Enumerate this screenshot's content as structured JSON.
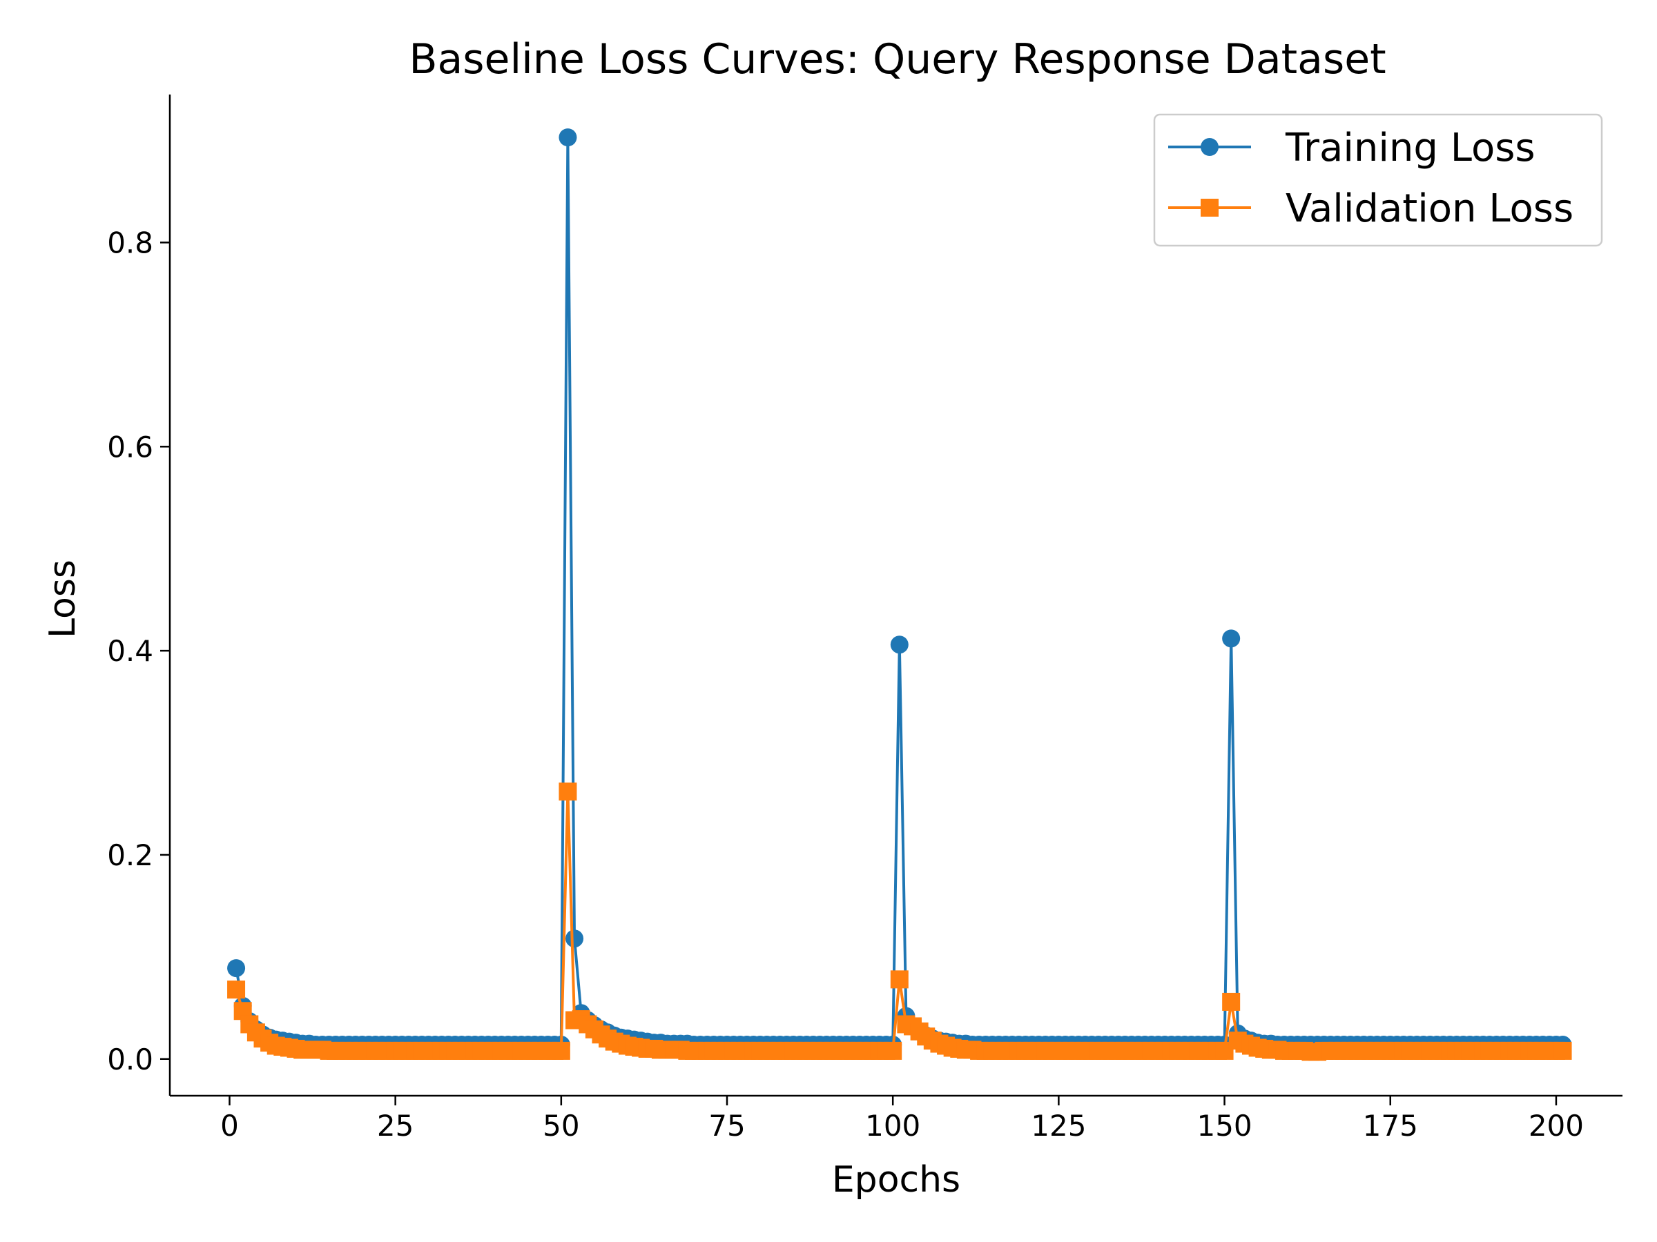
{
  "chart_data": {
    "type": "line",
    "title": "Baseline Loss Curves: Query Response Dataset",
    "xlabel": "Epochs",
    "ylabel": "Loss",
    "xlim": [
      -9,
      210
    ],
    "ylim": [
      -0.036,
      0.945
    ],
    "xticks": [
      0,
      25,
      50,
      75,
      100,
      125,
      150,
      175,
      200
    ],
    "yticks": [
      0.0,
      0.2,
      0.4,
      0.6,
      0.8
    ],
    "ytick_labels": [
      "0.0",
      "0.2",
      "0.4",
      "0.6",
      "0.8"
    ],
    "grid": false,
    "legend_position": "top-right",
    "x_start": 1,
    "x_end": 201,
    "series": [
      {
        "name": "Training Loss",
        "color": "#1f77b4",
        "marker": "circle",
        "segments": [
          {
            "x_start": 1,
            "values": [
              0.089,
              0.052,
              0.037,
              0.029,
              0.024,
              0.021,
              0.019,
              0.018,
              0.017,
              0.016,
              0.015,
              0.015,
              0.014,
              0.014,
              0.014,
              0.014,
              0.014,
              0.014,
              0.014,
              0.014,
              0.014,
              0.014,
              0.014,
              0.014,
              0.014,
              0.014,
              0.014,
              0.014,
              0.014,
              0.014,
              0.014,
              0.014,
              0.014,
              0.014,
              0.014,
              0.014,
              0.014,
              0.014,
              0.014,
              0.014,
              0.014,
              0.014,
              0.014,
              0.014,
              0.014,
              0.014,
              0.014,
              0.014,
              0.014,
              0.014
            ]
          },
          {
            "x_start": 51,
            "values": [
              0.903,
              0.118,
              0.045,
              0.038,
              0.033,
              0.029,
              0.026,
              0.023,
              0.021,
              0.02,
              0.019,
              0.018,
              0.017,
              0.016,
              0.016,
              0.015,
              0.015,
              0.015,
              0.015,
              0.014,
              0.014,
              0.014,
              0.014,
              0.014,
              0.014,
              0.014,
              0.014,
              0.014,
              0.014,
              0.014,
              0.014,
              0.014,
              0.014,
              0.014,
              0.014,
              0.014,
              0.014,
              0.014,
              0.014,
              0.014,
              0.014,
              0.014,
              0.014,
              0.014,
              0.014,
              0.014,
              0.014,
              0.014,
              0.014,
              0.014
            ]
          },
          {
            "x_start": 101,
            "values": [
              0.406,
              0.042,
              0.032,
              0.027,
              0.023,
              0.02,
              0.018,
              0.017,
              0.016,
              0.015,
              0.015,
              0.014,
              0.014,
              0.014,
              0.014,
              0.014,
              0.014,
              0.014,
              0.014,
              0.014,
              0.014,
              0.014,
              0.014,
              0.014,
              0.014,
              0.014,
              0.014,
              0.014,
              0.014,
              0.014,
              0.014,
              0.014,
              0.014,
              0.014,
              0.014,
              0.014,
              0.014,
              0.014,
              0.014,
              0.014,
              0.014,
              0.014,
              0.014,
              0.014,
              0.014,
              0.014,
              0.014,
              0.014,
              0.014,
              0.014
            ]
          },
          {
            "x_start": 151,
            "values": [
              0.412,
              0.025,
              0.02,
              0.018,
              0.016,
              0.015,
              0.015,
              0.014,
              0.014,
              0.014,
              0.014,
              0.014,
              0.014,
              0.014,
              0.014,
              0.014,
              0.014,
              0.014,
              0.014,
              0.014,
              0.014,
              0.014,
              0.014,
              0.014,
              0.014,
              0.014,
              0.014,
              0.014,
              0.014,
              0.014,
              0.014,
              0.014,
              0.014,
              0.014,
              0.014,
              0.014,
              0.014,
              0.014,
              0.014,
              0.014,
              0.014,
              0.014,
              0.014,
              0.014,
              0.014,
              0.014,
              0.014,
              0.014,
              0.014,
              0.014,
              0.014
            ]
          }
        ]
      },
      {
        "name": "Validation Loss",
        "color": "#ff7f0e",
        "marker": "square",
        "segments": [
          {
            "x_start": 1,
            "values": [
              0.068,
              0.047,
              0.034,
              0.026,
              0.02,
              0.016,
              0.013,
              0.012,
              0.011,
              0.01,
              0.009,
              0.009,
              0.009,
              0.009,
              0.008,
              0.008,
              0.008,
              0.008,
              0.008,
              0.008,
              0.008,
              0.008,
              0.008,
              0.008,
              0.008,
              0.008,
              0.008,
              0.008,
              0.008,
              0.008,
              0.008,
              0.008,
              0.008,
              0.008,
              0.008,
              0.008,
              0.008,
              0.008,
              0.008,
              0.008,
              0.008,
              0.008,
              0.008,
              0.008,
              0.008,
              0.008,
              0.008,
              0.008,
              0.008,
              0.008
            ]
          },
          {
            "x_start": 51,
            "values": [
              0.262,
              0.038,
              0.039,
              0.034,
              0.029,
              0.024,
              0.02,
              0.017,
              0.015,
              0.013,
              0.012,
              0.011,
              0.01,
              0.01,
              0.009,
              0.009,
              0.009,
              0.009,
              0.008,
              0.008,
              0.008,
              0.008,
              0.008,
              0.008,
              0.008,
              0.008,
              0.008,
              0.008,
              0.008,
              0.008,
              0.008,
              0.008,
              0.008,
              0.008,
              0.008,
              0.008,
              0.008,
              0.008,
              0.008,
              0.008,
              0.008,
              0.008,
              0.008,
              0.008,
              0.008,
              0.008,
              0.008,
              0.008,
              0.008,
              0.008
            ]
          },
          {
            "x_start": 101,
            "values": [
              0.078,
              0.034,
              0.032,
              0.027,
              0.022,
              0.018,
              0.015,
              0.013,
              0.011,
              0.01,
              0.009,
              0.009,
              0.008,
              0.008,
              0.008,
              0.008,
              0.008,
              0.008,
              0.008,
              0.008,
              0.008,
              0.008,
              0.008,
              0.008,
              0.008,
              0.008,
              0.008,
              0.008,
              0.008,
              0.008,
              0.008,
              0.008,
              0.008,
              0.008,
              0.008,
              0.008,
              0.008,
              0.008,
              0.008,
              0.008,
              0.008,
              0.008,
              0.008,
              0.008,
              0.008,
              0.008,
              0.008,
              0.008,
              0.008,
              0.008
            ]
          },
          {
            "x_start": 151,
            "values": [
              0.056,
              0.018,
              0.015,
              0.013,
              0.011,
              0.01,
              0.009,
              0.009,
              0.008,
              0.008,
              0.008,
              0.008,
              0.007,
              0.007,
              0.008,
              0.008,
              0.008,
              0.008,
              0.008,
              0.008,
              0.008,
              0.008,
              0.008,
              0.008,
              0.008,
              0.008,
              0.008,
              0.008,
              0.008,
              0.008,
              0.008,
              0.008,
              0.008,
              0.008,
              0.008,
              0.008,
              0.008,
              0.008,
              0.008,
              0.008,
              0.008,
              0.008,
              0.008,
              0.008,
              0.008,
              0.008,
              0.008,
              0.008,
              0.008,
              0.008,
              0.008
            ]
          }
        ]
      }
    ]
  }
}
